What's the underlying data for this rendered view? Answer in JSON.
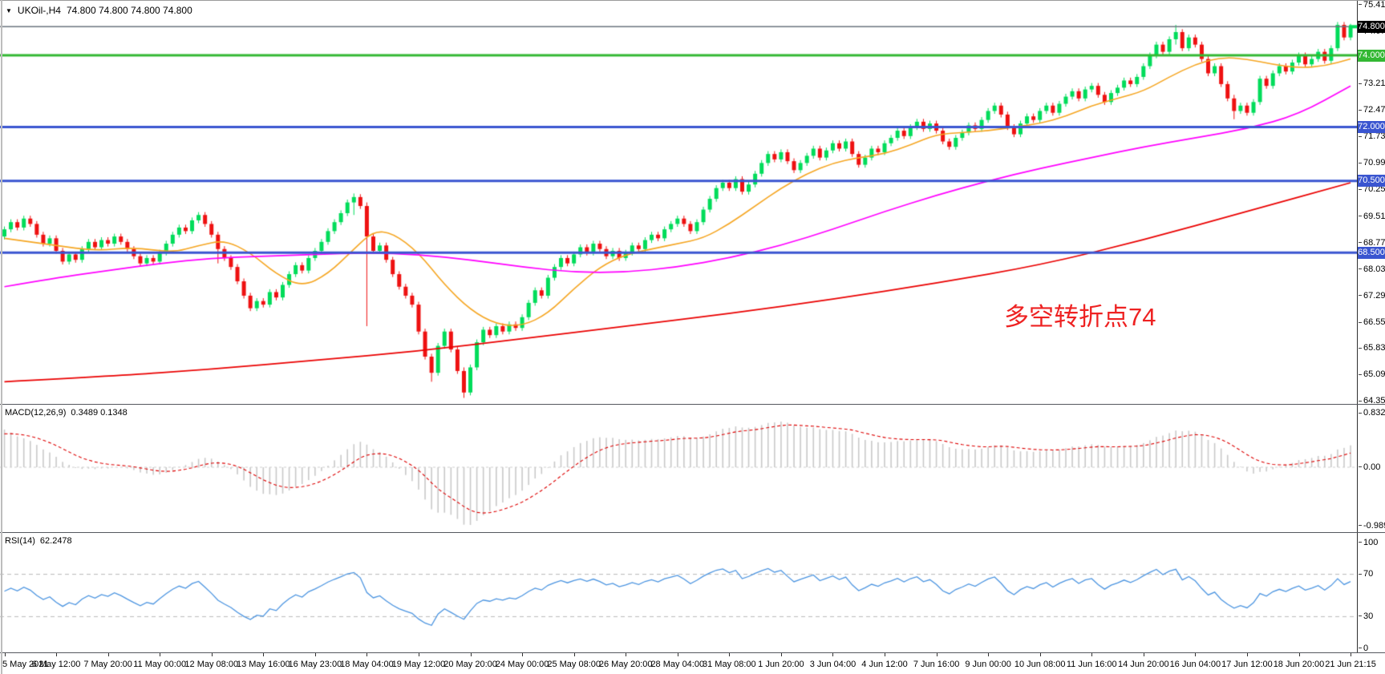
{
  "window": {
    "symbol": "UKOil-,H4",
    "ohlc": "74.800 74.800 74.800 74.800"
  },
  "annotation": {
    "text": "多空转折点74",
    "color": "#ee2222"
  },
  "panels": {
    "macd": {
      "label": "MACD(12,26,9)",
      "values": "0.3489 0.1348",
      "axis": [
        {
          "text": "0.8326",
          "v": 0.8326
        },
        {
          "text": "0.00",
          "v": 0
        },
        {
          "text": "-0.9897",
          "v": -0.9897
        }
      ]
    },
    "rsi": {
      "label": "RSI(14)",
      "value": "62.2478",
      "axis": [
        {
          "text": "100",
          "v": 100
        },
        {
          "text": "70",
          "v": 70
        },
        {
          "text": "30",
          "v": 30
        },
        {
          "text": "0",
          "v": 0
        }
      ]
    }
  },
  "chart_data": {
    "type": "candlestick",
    "title": "UKOil-,H4 74.800 74.800 74.800 74.800",
    "price_axis": {
      "min": 64.35,
      "max": 75.41,
      "ticks": [
        "75.410",
        "74.670",
        "73.950",
        "73.210",
        "72.470",
        "71.730",
        "70.990",
        "70.250",
        "69.510",
        "68.770",
        "68.030",
        "67.290",
        "66.550",
        "65.830",
        "65.090",
        "64.350"
      ]
    },
    "current_price": {
      "value": 74.8,
      "label": "74.800",
      "line_color": "#6b747e",
      "box_color": "#000000"
    },
    "hlines": [
      {
        "price": 74.0,
        "label": "74.000",
        "color": "#33b833",
        "width": 3
      },
      {
        "price": 72.0,
        "label": "72.000",
        "color": "#3a55d0",
        "width": 3
      },
      {
        "price": 70.5,
        "label": "70.500",
        "color": "#3a55d0",
        "width": 3
      },
      {
        "price": 68.5,
        "label": "68.500",
        "color": "#3a55d0",
        "width": 3
      }
    ],
    "time_labels": [
      "5 May 2021",
      "6 May 12:00",
      "7 May 20:00",
      "11 May 00:00",
      "12 May 08:00",
      "13 May 16:00",
      "16 May 23:00",
      "18 May 04:00",
      "19 May 12:00",
      "20 May 20:00",
      "24 May 00:00",
      "25 May 08:00",
      "26 May 20:00",
      "28 May 04:00",
      "31 May 08:00",
      "1 Jun 20:00",
      "3 Jun 04:00",
      "4 Jun 12:00",
      "7 Jun 16:00",
      "9 Jun 00:00",
      "10 Jun 08:00",
      "11 Jun 16:00",
      "14 Jun 20:00",
      "16 Jun 04:00",
      "17 Jun 12:00",
      "18 Jun 20:00",
      "21 Jun 21:15"
    ],
    "candles_per_label": 8,
    "first_open": 68.95,
    "closes": [
      69.15,
      69.35,
      69.2,
      69.45,
      69.3,
      69.0,
      68.75,
      68.9,
      68.55,
      68.25,
      68.45,
      68.3,
      68.6,
      68.8,
      68.65,
      68.85,
      68.75,
      68.95,
      68.8,
      68.6,
      68.4,
      68.2,
      68.35,
      68.25,
      68.5,
      68.75,
      69.0,
      69.2,
      69.1,
      69.4,
      69.55,
      69.3,
      69.0,
      68.6,
      68.35,
      68.1,
      67.7,
      67.3,
      66.95,
      67.15,
      67.05,
      67.4,
      67.25,
      67.6,
      67.9,
      68.15,
      68.0,
      68.35,
      68.55,
      68.8,
      69.1,
      69.35,
      69.6,
      69.9,
      70.05,
      69.8,
      68.95,
      68.55,
      68.7,
      68.3,
      67.9,
      67.55,
      67.3,
      67.05,
      66.3,
      65.6,
      65.15,
      65.9,
      66.3,
      65.8,
      65.2,
      64.6,
      65.3,
      66.0,
      66.35,
      66.2,
      66.45,
      66.3,
      66.5,
      66.4,
      66.7,
      67.1,
      67.45,
      67.3,
      67.8,
      68.1,
      68.35,
      68.2,
      68.45,
      68.65,
      68.5,
      68.75,
      68.6,
      68.4,
      68.55,
      68.35,
      68.5,
      68.7,
      68.6,
      68.85,
      69.0,
      68.9,
      69.15,
      69.3,
      69.45,
      69.3,
      69.1,
      69.35,
      69.7,
      70.0,
      70.3,
      70.45,
      70.3,
      70.55,
      70.2,
      70.4,
      70.7,
      71.0,
      71.25,
      71.1,
      71.3,
      71.05,
      70.8,
      71.0,
      71.2,
      71.4,
      71.15,
      71.35,
      71.55,
      71.4,
      71.6,
      71.25,
      70.95,
      71.15,
      71.4,
      71.3,
      71.55,
      71.7,
      71.9,
      71.75,
      72.0,
      72.15,
      71.95,
      72.1,
      71.9,
      71.6,
      71.45,
      71.7,
      71.85,
      72.05,
      71.95,
      72.2,
      72.45,
      72.6,
      72.35,
      72.0,
      71.8,
      72.1,
      72.3,
      72.2,
      72.45,
      72.6,
      72.4,
      72.65,
      72.85,
      73.0,
      72.8,
      73.05,
      73.15,
      72.9,
      72.7,
      72.95,
      73.1,
      73.3,
      73.2,
      73.4,
      73.7,
      74.0,
      74.3,
      74.1,
      74.45,
      74.65,
      74.2,
      74.5,
      74.3,
      73.9,
      73.5,
      73.7,
      73.2,
      72.8,
      72.45,
      72.6,
      72.4,
      72.7,
      73.35,
      73.15,
      73.5,
      73.7,
      73.55,
      73.8,
      74.0,
      73.75,
      73.9,
      74.1,
      73.85,
      74.2,
      74.85,
      74.5,
      74.8
    ],
    "wick_default": 0.08,
    "wick_overrides": {
      "33": [
        69.0,
        68.2
      ],
      "54": [
        70.15,
        69.55
      ],
      "56": [
        69.9,
        66.45
      ],
      "66": [
        65.5,
        64.9
      ],
      "71": [
        65.3,
        64.45
      ],
      "181": [
        74.85,
        74.3
      ],
      "190": [
        72.9,
        72.22
      ],
      "206": [
        74.92,
        74.15
      ]
    },
    "ma_lines": [
      {
        "name": "ma-fast",
        "color": "#f5a623",
        "width": 1.6,
        "points": [
          [
            0,
            68.9
          ],
          [
            8,
            68.7
          ],
          [
            14,
            68.55
          ],
          [
            20,
            68.65
          ],
          [
            26,
            68.5
          ],
          [
            30,
            68.7
          ],
          [
            34,
            68.85
          ],
          [
            38,
            68.5
          ],
          [
            42,
            67.9
          ],
          [
            46,
            67.55
          ],
          [
            50,
            67.9
          ],
          [
            54,
            68.6
          ],
          [
            57,
            69.1
          ],
          [
            60,
            69.05
          ],
          [
            64,
            68.5
          ],
          [
            68,
            67.6
          ],
          [
            72,
            66.9
          ],
          [
            76,
            66.5
          ],
          [
            80,
            66.45
          ],
          [
            84,
            66.8
          ],
          [
            88,
            67.5
          ],
          [
            92,
            68.1
          ],
          [
            96,
            68.45
          ],
          [
            100,
            68.6
          ],
          [
            104,
            68.75
          ],
          [
            108,
            68.9
          ],
          [
            112,
            69.3
          ],
          [
            116,
            69.8
          ],
          [
            120,
            70.3
          ],
          [
            124,
            70.7
          ],
          [
            128,
            71.0
          ],
          [
            132,
            71.15
          ],
          [
            136,
            71.25
          ],
          [
            140,
            71.5
          ],
          [
            144,
            71.8
          ],
          [
            148,
            71.85
          ],
          [
            152,
            71.9
          ],
          [
            156,
            72.0
          ],
          [
            160,
            72.1
          ],
          [
            164,
            72.3
          ],
          [
            168,
            72.6
          ],
          [
            172,
            72.8
          ],
          [
            176,
            73.0
          ],
          [
            180,
            73.4
          ],
          [
            184,
            73.75
          ],
          [
            188,
            73.95
          ],
          [
            192,
            73.9
          ],
          [
            196,
            73.75
          ],
          [
            200,
            73.65
          ],
          [
            204,
            73.7
          ],
          [
            208,
            73.9
          ]
        ]
      },
      {
        "name": "ma-mid",
        "color": "#ff00ff",
        "width": 1.7,
        "points": [
          [
            0,
            67.55
          ],
          [
            8,
            67.8
          ],
          [
            16,
            68.0
          ],
          [
            24,
            68.2
          ],
          [
            32,
            68.35
          ],
          [
            40,
            68.4
          ],
          [
            48,
            68.45
          ],
          [
            56,
            68.5
          ],
          [
            64,
            68.45
          ],
          [
            72,
            68.3
          ],
          [
            80,
            68.1
          ],
          [
            88,
            67.95
          ],
          [
            96,
            67.95
          ],
          [
            104,
            68.1
          ],
          [
            112,
            68.35
          ],
          [
            120,
            68.7
          ],
          [
            128,
            69.15
          ],
          [
            136,
            69.65
          ],
          [
            144,
            70.1
          ],
          [
            152,
            70.5
          ],
          [
            160,
            70.85
          ],
          [
            168,
            71.15
          ],
          [
            176,
            71.45
          ],
          [
            184,
            71.7
          ],
          [
            192,
            71.95
          ],
          [
            200,
            72.35
          ],
          [
            208,
            73.15
          ]
        ]
      },
      {
        "name": "ma-slow",
        "color": "#ea0000",
        "width": 1.7,
        "points": [
          [
            0,
            64.9
          ],
          [
            16,
            65.05
          ],
          [
            32,
            65.25
          ],
          [
            48,
            65.5
          ],
          [
            64,
            65.75
          ],
          [
            80,
            66.1
          ],
          [
            96,
            66.45
          ],
          [
            112,
            66.8
          ],
          [
            128,
            67.2
          ],
          [
            144,
            67.65
          ],
          [
            160,
            68.15
          ],
          [
            176,
            68.85
          ],
          [
            192,
            69.65
          ],
          [
            208,
            70.45
          ]
        ]
      }
    ],
    "macd": {
      "params": [
        12,
        26,
        9
      ],
      "main": 0.3489,
      "signal": 0.1348,
      "ylim": [
        -0.9897,
        0.8326
      ],
      "bar_color": "#c9c9c9",
      "signal_color": "#dd0000"
    },
    "rsi": {
      "period": 14,
      "value": 62.2478,
      "ylim": [
        0,
        100
      ],
      "levels": [
        70,
        30
      ],
      "line_color": "#4b94e0"
    },
    "colors": {
      "up": "#00dc5a",
      "down": "#ee1111",
      "level_dash": "#b8b8b8"
    }
  }
}
